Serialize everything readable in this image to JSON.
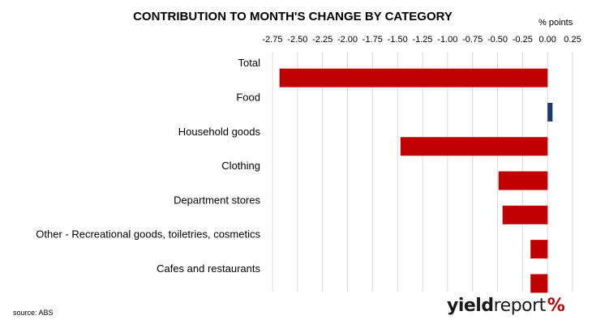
{
  "chart_data": {
    "type": "bar",
    "orientation": "horizontal",
    "title": "CONTRIBUTION TO MONTH'S CHANGE BY CATEGORY",
    "unit_label": "% points",
    "xlim": [
      -2.75,
      0.25
    ],
    "ticks": [
      -2.75,
      -2.5,
      -2.25,
      -2.0,
      -1.75,
      -1.5,
      -1.25,
      -1.0,
      -0.75,
      -0.5,
      -0.25,
      0.0,
      0.25
    ],
    "tick_labels": [
      "-2.75",
      "-2.50",
      "-2.25",
      "-2.00",
      "-1.75",
      "-1.50",
      "-1.25",
      "-1.00",
      "-0.75",
      "-0.50",
      "-0.25",
      "0.00",
      "0.25"
    ],
    "grid": "vertical",
    "categories": [
      "Total",
      "Food",
      "Household goods",
      "Clothing",
      "Department stores",
      "Other - Recreational goods, toiletries, cosmetics",
      "Cafes and restaurants"
    ],
    "values": [
      -2.68,
      0.05,
      -1.47,
      -0.49,
      -0.45,
      -0.17,
      -0.17
    ],
    "colors": {
      "negative": "#c00000",
      "positive": "#1f3864",
      "grid": "#d9d9d9"
    }
  },
  "footer": {
    "source": "source: ABS"
  },
  "logo": {
    "part1": "yield",
    "part2": "report",
    "symbol": "%"
  }
}
